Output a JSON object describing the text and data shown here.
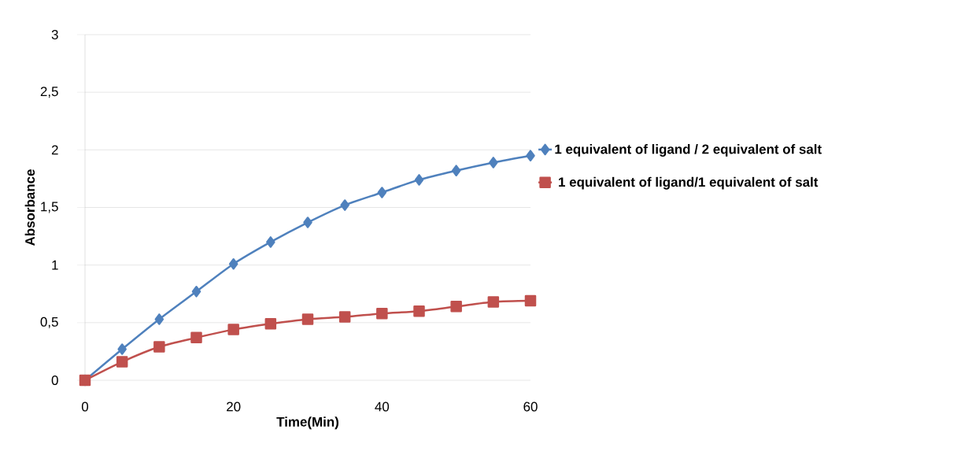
{
  "chart_data": {
    "type": "line",
    "xlabel": "Time(Min)",
    "ylabel": "Absorbance",
    "x": [
      0,
      5,
      10,
      15,
      20,
      25,
      30,
      35,
      40,
      45,
      50,
      55,
      60
    ],
    "series": [
      {
        "name": "1 equivalent of ligand / 2 equivalent of salt",
        "color": "#4f81bd",
        "marker": "diamond",
        "values": [
          0,
          0.27,
          0.53,
          0.77,
          1.01,
          1.2,
          1.37,
          1.52,
          1.63,
          1.74,
          1.82,
          1.89,
          1.95
        ]
      },
      {
        "name": "1 equivalent of ligand/1 equivalent of salt",
        "color": "#c0504d",
        "marker": "square",
        "values": [
          0,
          0.16,
          0.29,
          0.37,
          0.44,
          0.49,
          0.53,
          0.55,
          0.58,
          0.6,
          0.64,
          0.68,
          0.69
        ]
      }
    ],
    "xlim": [
      0,
      60
    ],
    "xticks": [
      0,
      20,
      40,
      60
    ],
    "ylim": [
      0,
      3
    ],
    "yticks": [
      0,
      {
        "value": 0.5,
        "label": "0,5"
      },
      1,
      {
        "value": 1.5,
        "label": "1,5"
      },
      2,
      {
        "value": 2.5,
        "label": "2,5"
      },
      3
    ],
    "grid": "y",
    "legend": "right",
    "line_style": "solid"
  }
}
